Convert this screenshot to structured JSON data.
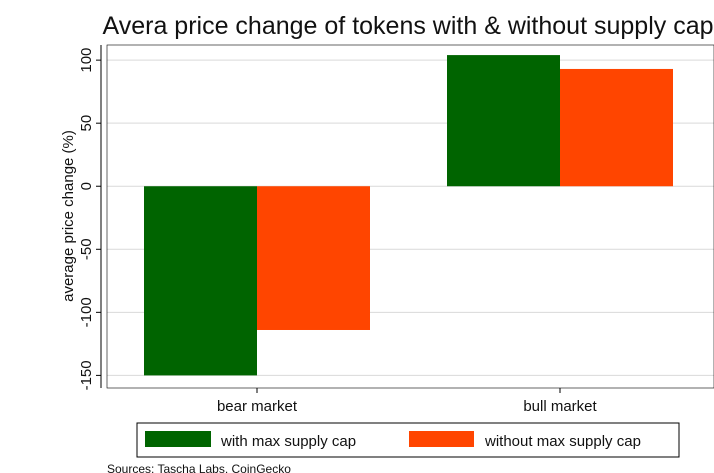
{
  "chart_data": {
    "type": "bar",
    "title": "Avera price change of tokens with & without supply cap",
    "xlabel": "",
    "ylabel": "average price change (%)",
    "categories": [
      "bear market",
      "bull market"
    ],
    "series": [
      {
        "name": "with max supply cap",
        "values": [
          -150,
          104
        ],
        "color": "#006400"
      },
      {
        "name": "without max supply cap",
        "values": [
          -114,
          93
        ],
        "color": "#ff4500"
      }
    ],
    "ylim": [
      -160,
      112
    ],
    "yticks": [
      100,
      50,
      0,
      -50,
      -100,
      -150
    ],
    "grid": true,
    "legend_position": "bottom",
    "source": "Sources: Tascha Labs, CoinGecko"
  }
}
